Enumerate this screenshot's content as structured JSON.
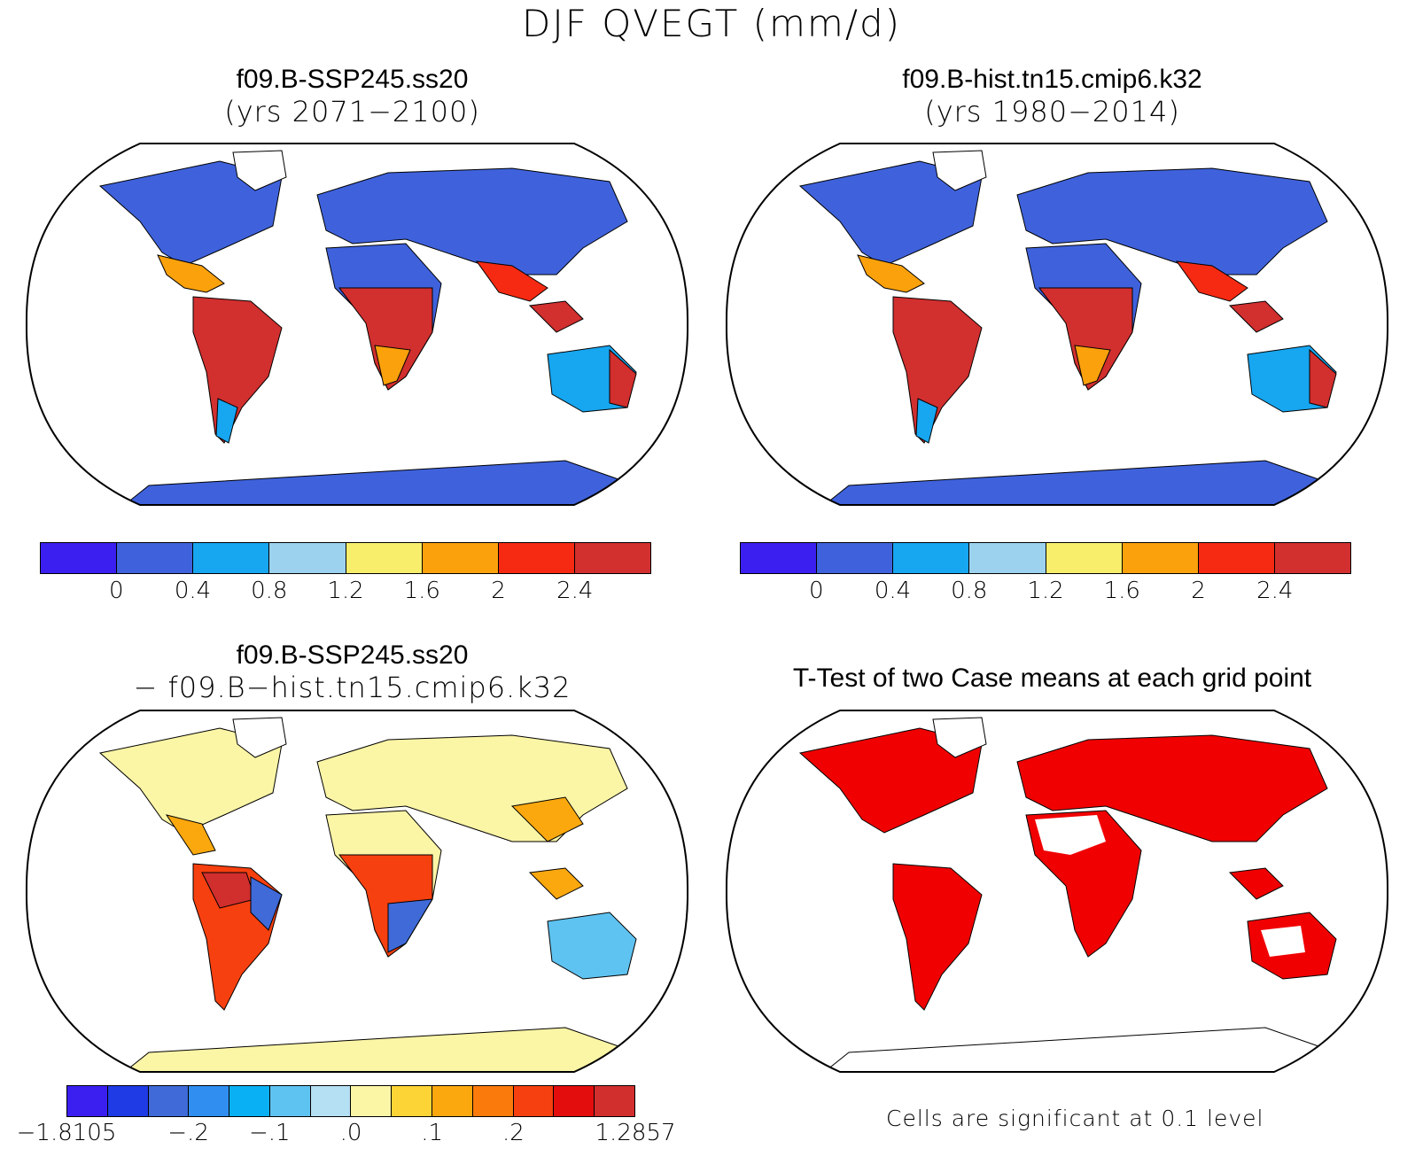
{
  "main_title": "DJF QVEGT (mm/d)",
  "panels": {
    "top_left": {
      "title_line1": "f09.B-SSP245.ss20",
      "title_line2": "(yrs 2071−2100)"
    },
    "top_right": {
      "title_line1": "f09.B-hist.tn15.cmip6.k32",
      "title_line2": "(yrs 1980−2014)"
    },
    "bottom_left": {
      "title_line1": "f09.B-SSP245.ss20",
      "title_line2": "− f09.B−hist.tn15.cmip6.k32"
    },
    "bottom_right": {
      "title_line1": "T-Test of two Case means at each grid point",
      "note": "Cells are significant at 0.1 level"
    }
  },
  "colorbar_main": {
    "colors": [
      "#3b1ff0",
      "#3f62dc",
      "#17a6f0",
      "#9dd2ee",
      "#f9ee6c",
      "#fba10c",
      "#f62a12",
      "#d22f2f"
    ],
    "ticks": [
      "0",
      "0.4",
      "0.8",
      "1.2",
      "1.6",
      "2",
      "2.4"
    ]
  },
  "colorbar_diff": {
    "colors": [
      "#3b1ff0",
      "#1f3be6",
      "#3f6ad8",
      "#2f8ef0",
      "#0ab0f4",
      "#5fc3f1",
      "#b5dff2",
      "#fbf5a6",
      "#fcd436",
      "#fba80e",
      "#fb7a0c",
      "#f7400f",
      "#e30d0d",
      "#d12e2e"
    ],
    "ticks": [
      "−1.8105",
      "−.2",
      "−.1",
      ".0",
      ".1",
      ".2",
      "1.2857"
    ]
  },
  "significance_color": "#f00000"
}
